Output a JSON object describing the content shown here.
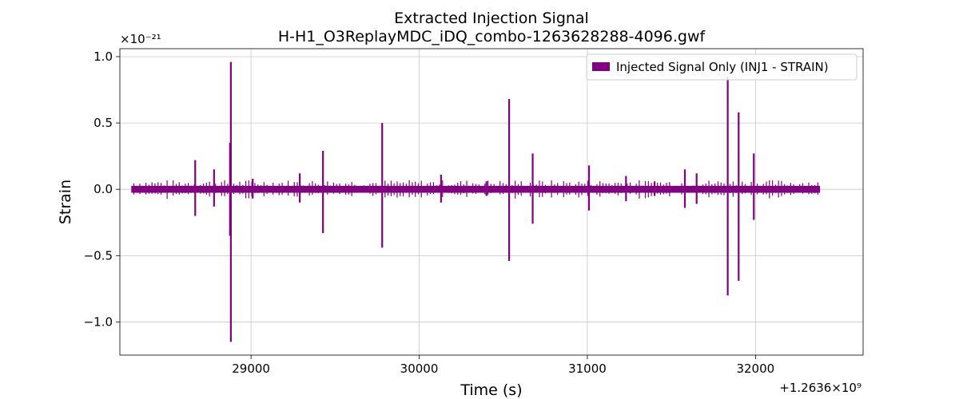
{
  "chart_data": {
    "type": "line",
    "title": "Extracted Injection Signal",
    "subtitle": "H-H1_O3ReplayMDC_iDQ_combo-1263628288-4096.gwf",
    "xlabel": "Time (s)",
    "ylabel": "Strain",
    "x_offset_label": "+1.2636×10⁹",
    "x_offset_value": 1263600000,
    "y_scale_label": "×10⁻²¹",
    "y_scale_value": 1e-21,
    "xlim": [
      28220,
      32640
    ],
    "ylim": [
      -1.25,
      1.06
    ],
    "x_ticks": [
      {
        "value": 29000,
        "label": "29000"
      },
      {
        "value": 30000,
        "label": "30000"
      },
      {
        "value": 31000,
        "label": "31000"
      },
      {
        "value": 32000,
        "label": "32000"
      }
    ],
    "y_ticks": [
      {
        "value": 1.0,
        "label": "1.0"
      },
      {
        "value": 0.5,
        "label": "0.5"
      },
      {
        "value": 0.0,
        "label": "0.0"
      },
      {
        "value": -0.5,
        "label": "−0.5"
      },
      {
        "value": -1.0,
        "label": "−1.0"
      }
    ],
    "grid": true,
    "legend_position": "top-right",
    "series": [
      {
        "name": "Injected Signal Only (INJ1 - STRAIN)",
        "color": "#800080",
        "x_range": [
          28288,
          32384
        ],
        "baseline_band": [
          -0.02,
          0.02
        ],
        "spikes": [
          {
            "x": 28668,
            "ymax": 0.22,
            "ymin": -0.2
          },
          {
            "x": 28780,
            "ymax": 0.15,
            "ymin": -0.13
          },
          {
            "x": 28880,
            "ymax": 0.96,
            "ymin": -1.15
          },
          {
            "x": 28875,
            "ymax": 0.35,
            "ymin": -0.35
          },
          {
            "x": 29010,
            "ymax": 0.08,
            "ymin": -0.07
          },
          {
            "x": 29290,
            "ymax": 0.12,
            "ymin": -0.1
          },
          {
            "x": 29428,
            "ymax": 0.29,
            "ymin": -0.33
          },
          {
            "x": 29780,
            "ymax": 0.5,
            "ymin": -0.44
          },
          {
            "x": 30130,
            "ymax": 0.11,
            "ymin": -0.1
          },
          {
            "x": 30400,
            "ymax": 0.06,
            "ymin": -0.05
          },
          {
            "x": 30535,
            "ymax": 0.68,
            "ymin": -0.54
          },
          {
            "x": 30675,
            "ymax": 0.27,
            "ymin": -0.26
          },
          {
            "x": 31010,
            "ymax": 0.18,
            "ymin": -0.16
          },
          {
            "x": 31230,
            "ymax": 0.1,
            "ymin": -0.09
          },
          {
            "x": 31400,
            "ymax": 0.06,
            "ymin": -0.05
          },
          {
            "x": 31580,
            "ymax": 0.15,
            "ymin": -0.14
          },
          {
            "x": 31650,
            "ymax": 0.12,
            "ymin": -0.11
          },
          {
            "x": 31835,
            "ymax": 0.85,
            "ymin": -0.8
          },
          {
            "x": 31900,
            "ymax": 0.58,
            "ymin": -0.69
          },
          {
            "x": 31990,
            "ymax": 0.27,
            "ymin": -0.23
          }
        ]
      }
    ]
  }
}
